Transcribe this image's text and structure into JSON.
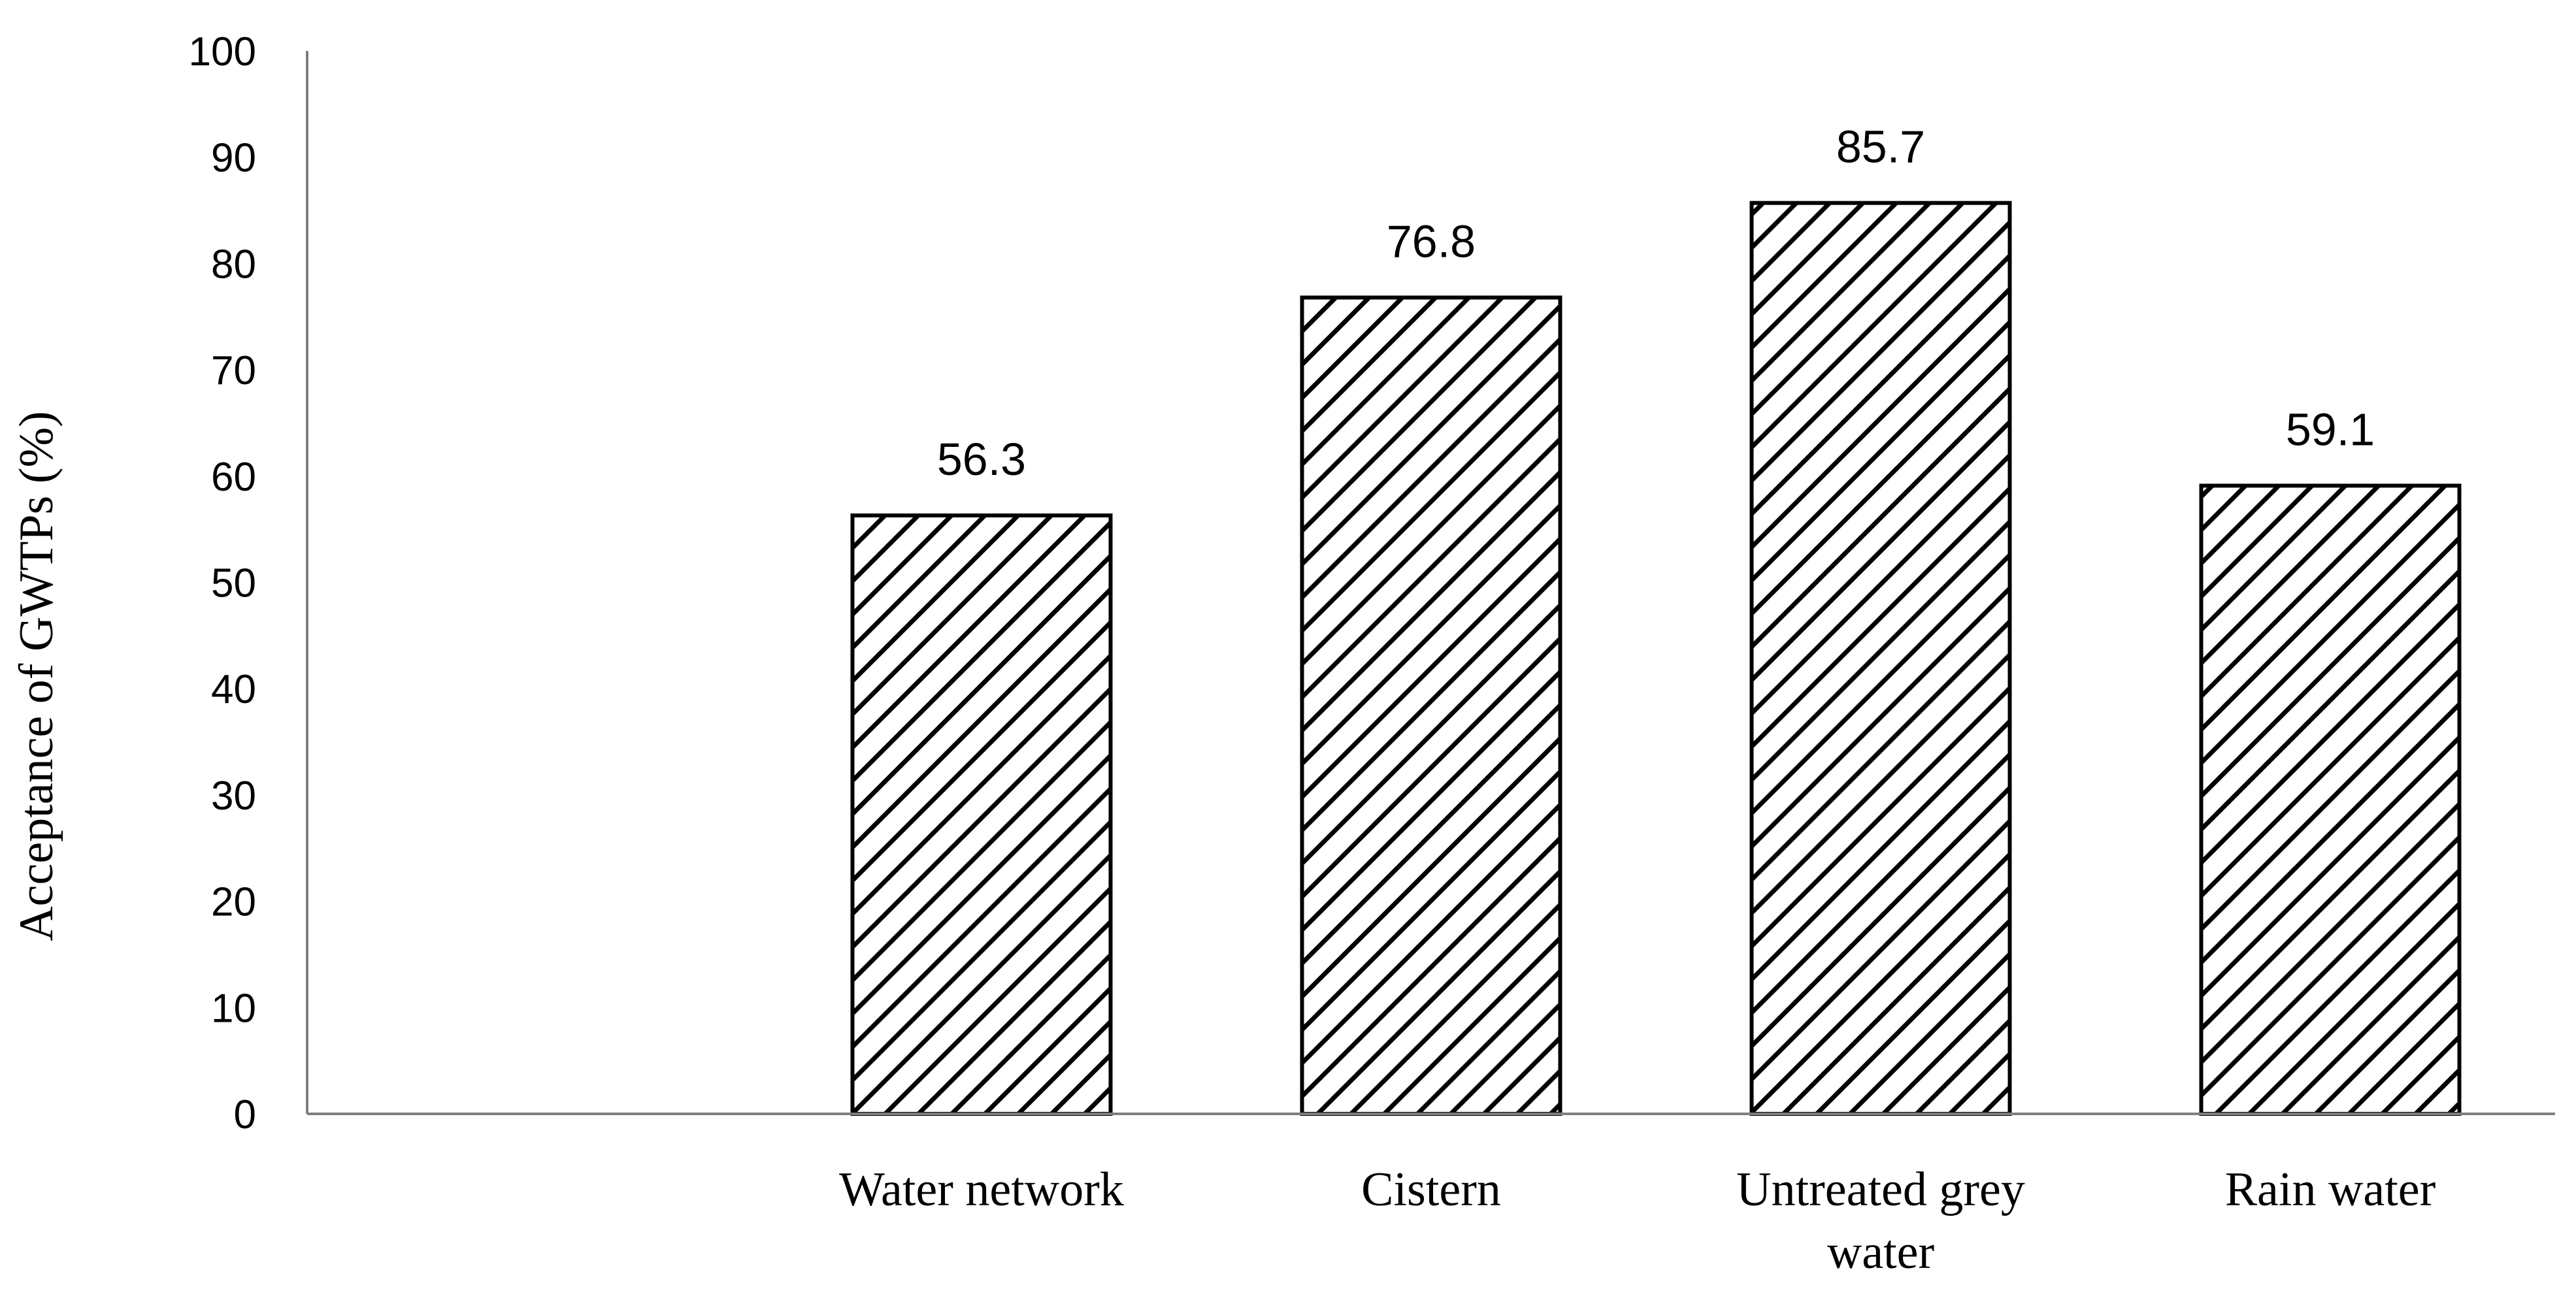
{
  "chart_data": {
    "type": "bar",
    "categories": [
      "",
      "Water network",
      "Cistern",
      "Untreated grey water",
      "Rain water"
    ],
    "category_lines": [
      [
        ""
      ],
      [
        "Water network"
      ],
      [
        "Cistern"
      ],
      [
        "Untreated grey",
        "water"
      ],
      [
        "Rain water"
      ]
    ],
    "values": [
      null,
      56.3,
      76.8,
      85.7,
      59.1
    ],
    "data_labels": [
      "",
      "56.3",
      "76.8",
      "85.7",
      "59.1"
    ],
    "title": "",
    "xlabel": "",
    "ylabel": "Acceptance of GWTPs (%)",
    "ylim": [
      0,
      100
    ],
    "yticks": [
      0,
      10,
      20,
      30,
      40,
      50,
      60,
      70,
      80,
      90,
      100
    ],
    "grid": false,
    "legend": "none",
    "bar_fill": "diagonal-hatch",
    "colors": {
      "bar_edge": "#000000",
      "hatch": "#000000",
      "axis": "#7f7f7f"
    }
  }
}
